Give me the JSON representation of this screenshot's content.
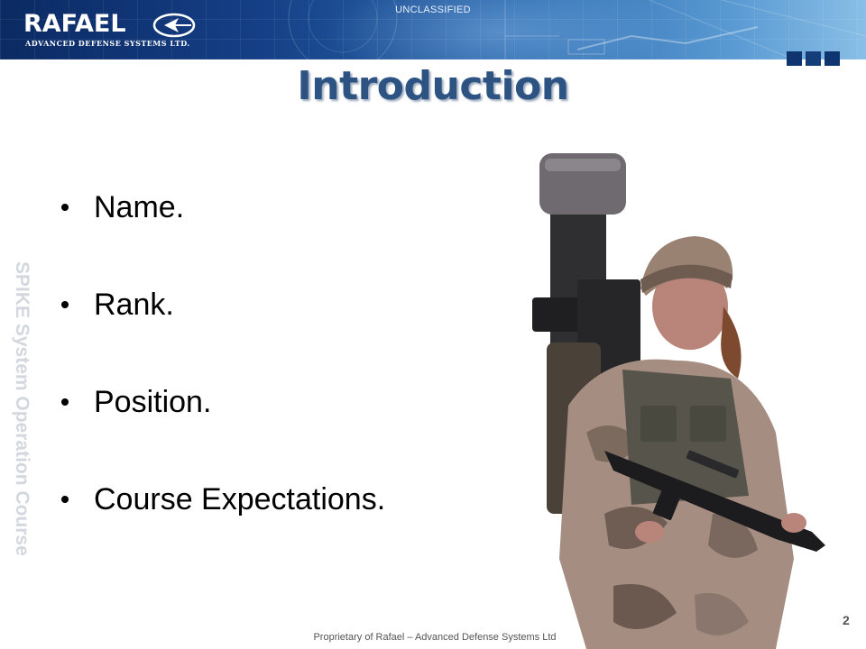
{
  "header": {
    "logo_name": "RAFAEL",
    "logo_subtitle": "ADVANCED DEFENSE SYSTEMS LTD.",
    "classification": "UNCLASSIFIED",
    "banner_colors": {
      "dark": "#0b2a63",
      "light": "#89bfe6"
    }
  },
  "slide": {
    "title": "Introduction",
    "side_label": "SPIKE System Operation Course",
    "bullets": [
      {
        "text": "Name."
      },
      {
        "text": "Rank."
      },
      {
        "text": "Position."
      },
      {
        "text": "Course Expectations."
      }
    ],
    "image": {
      "icon": "soldier-with-launcher-photo"
    }
  },
  "footer": {
    "text": "Proprietary of Rafael – Advanced Defense Systems Ltd",
    "page_number": "2"
  },
  "colors": {
    "title": "#2d5383",
    "side_label": "#d3d8de"
  }
}
